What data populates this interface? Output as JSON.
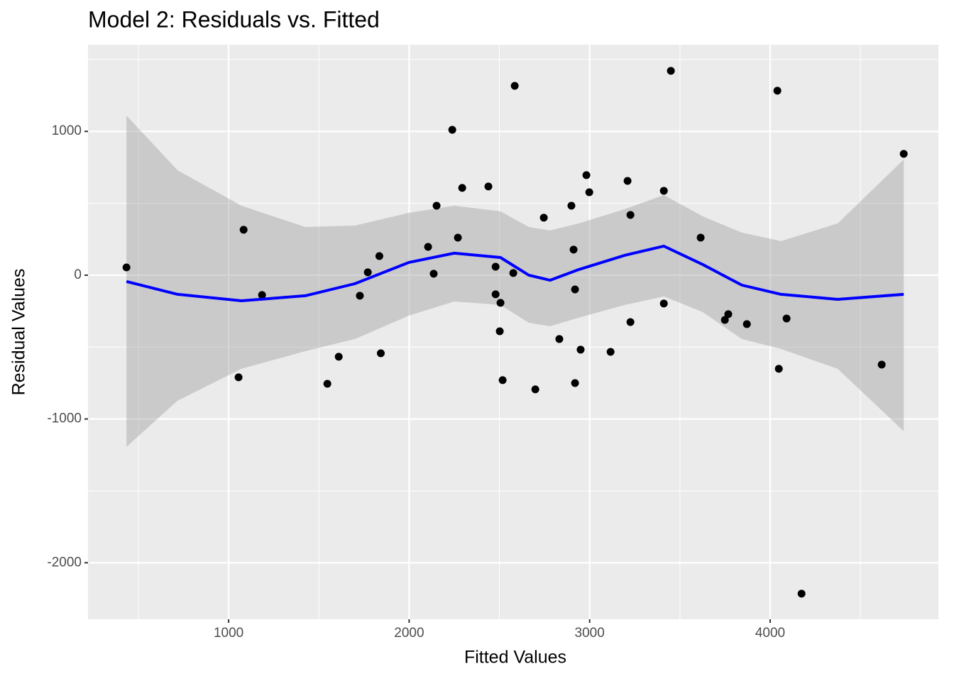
{
  "chart_data": {
    "type": "scatter",
    "title": "Model 2: Residuals vs. Fitted",
    "x_label": "Fitted Values",
    "y_label": "Residual Values",
    "xlim": [
      221,
      4932
    ],
    "ylim": [
      -2393,
      1603
    ],
    "xticks": [
      1000,
      2000,
      3000,
      4000
    ],
    "yticks": [
      -2000,
      -1000,
      0,
      1000
    ],
    "grid": true,
    "panel_color": "#ebebeb",
    "series": [
      {
        "kind": "points",
        "color": "#000000",
        "x": [
          434,
          1083,
          1055,
          1185,
          1547,
          1610,
          1727,
          1771,
          1835,
          1843,
          2105,
          2136,
          2152,
          2239,
          2270,
          2294,
          2439,
          2479,
          2479,
          2506,
          2502,
          2518,
          2577,
          2585,
          2699,
          2746,
          2832,
          2899,
          2911,
          2919,
          2919,
          2950,
          2982,
          2998,
          3116,
          3210,
          3226,
          3226,
          3411,
          3411,
          3450,
          3615,
          3749,
          3768,
          3871,
          4040,
          4048,
          4091,
          4174,
          4618,
          4740
        ],
        "values": [
          54,
          316,
          -710,
          -138,
          -755,
          -567,
          -143,
          20,
          133,
          -543,
          197,
          10,
          483,
          1011,
          261,
          607,
          617,
          59,
          -133,
          -192,
          -390,
          -730,
          15,
          1317,
          -794,
          400,
          -444,
          483,
          178,
          -99,
          -750,
          -518,
          696,
          577,
          -533,
          656,
          419,
          -326,
          587,
          -197,
          1421,
          261,
          -311,
          -271,
          -340,
          1283,
          -651,
          -301,
          -2215,
          -622,
          844
        ]
      },
      {
        "kind": "smooth",
        "color": "#0000ff",
        "band_color": "#999999",
        "x": [
          434,
          717,
          1071,
          1425,
          1700,
          1999,
          2250,
          2506,
          2663,
          2781,
          2939,
          3194,
          3411,
          3627,
          3843,
          4060,
          4374,
          4740
        ],
        "values": [
          -44,
          -133,
          -178,
          -143,
          -59,
          89,
          153,
          123,
          0,
          -35,
          39,
          138,
          202,
          74,
          -69,
          -133,
          -168,
          -133
        ],
        "upper": [
          1110,
          730,
          483,
          335,
          345,
          434,
          483,
          444,
          335,
          311,
          360,
          459,
          557,
          409,
          296,
          237,
          360,
          804
        ],
        "lower": [
          -1194,
          -873,
          -651,
          -528,
          -444,
          -281,
          -183,
          -207,
          -331,
          -355,
          -296,
          -207,
          -148,
          -257,
          -444,
          -513,
          -651,
          -1085
        ]
      }
    ]
  }
}
